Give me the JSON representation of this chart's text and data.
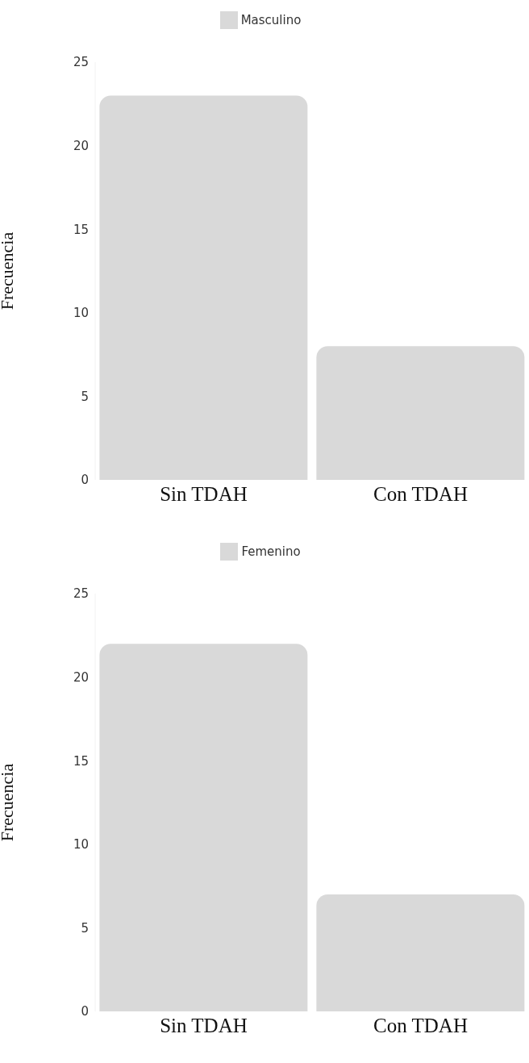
{
  "chart_data": [
    {
      "type": "bar",
      "categories": [
        "Sin TDAH",
        "Con TDAH"
      ],
      "series": [
        {
          "name": "Masculino",
          "color": "#d9d9d9",
          "values": [
            23,
            8
          ]
        }
      ],
      "ylim": [
        0,
        25
      ],
      "yticks": [
        0,
        5,
        10,
        15,
        20,
        25
      ],
      "ylabel": "Frecuencia",
      "legend": "top",
      "grid": false
    },
    {
      "type": "bar",
      "categories": [
        "Sin TDAH",
        "Con TDAH"
      ],
      "series": [
        {
          "name": "Femenino",
          "color": "#d9d9d9",
          "values": [
            22,
            7
          ]
        }
      ],
      "ylim": [
        0,
        25
      ],
      "yticks": [
        0,
        5,
        10,
        15,
        20,
        25
      ],
      "ylabel": "Frecuencia",
      "legend": "top",
      "grid": false
    }
  ]
}
